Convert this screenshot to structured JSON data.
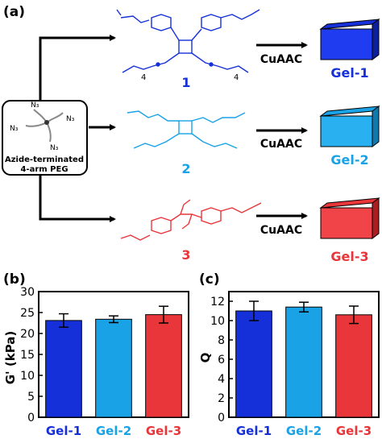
{
  "panel_a": {
    "label": "(a)",
    "peg": {
      "caption_line1": "Azide-terminated",
      "caption_line2": "4-arm PEG",
      "azide_label": "N₃"
    },
    "reaction_label": "CuAAC",
    "rows": [
      {
        "compound": "1",
        "gel": "Gel-1",
        "color": "#1530d8",
        "subscript": "4"
      },
      {
        "compound": "2",
        "gel": "Gel-2",
        "color": "#1aa2e6"
      },
      {
        "compound": "3",
        "gel": "Gel-3",
        "color": "#e8363a"
      }
    ]
  },
  "chart_data": [
    {
      "type": "bar",
      "panel": "(b)",
      "categories": [
        "Gel-1",
        "Gel-2",
        "Gel-3"
      ],
      "values": [
        23.1,
        23.4,
        24.5
      ],
      "errors": [
        1.6,
        0.8,
        2.0
      ],
      "colors": [
        "#1530d8",
        "#1aa2e6",
        "#e8363a"
      ],
      "ylabel": "G' (kPa)",
      "ylim": [
        0,
        30
      ],
      "yticks": [
        0,
        5,
        10,
        15,
        20,
        25,
        30
      ]
    },
    {
      "type": "bar",
      "panel": "(c)",
      "categories": [
        "Gel-1",
        "Gel-2",
        "Gel-3"
      ],
      "values": [
        11.0,
        11.4,
        10.6
      ],
      "errors": [
        1.0,
        0.5,
        0.9
      ],
      "colors": [
        "#1530d8",
        "#1aa2e6",
        "#e8363a"
      ],
      "ylabel": "Q",
      "ylim": [
        0,
        13
      ],
      "yticks": [
        0,
        2,
        4,
        6,
        8,
        10,
        12
      ]
    }
  ]
}
